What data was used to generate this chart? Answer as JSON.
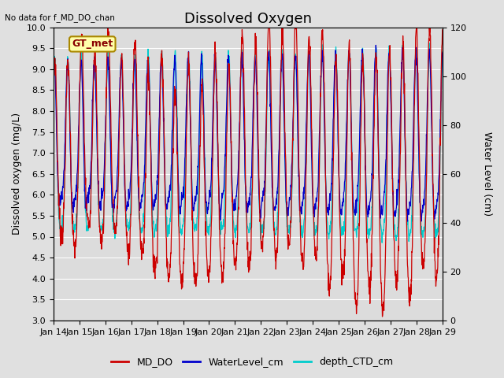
{
  "title": "Dissolved Oxygen",
  "top_left_text": "No data for f_MD_DO_chan",
  "legend_text": "GT_met",
  "ylabel_left": "Dissolved oxygen (mg/L)",
  "ylabel_right": "Water Level (cm)",
  "ylim_left": [
    3.0,
    10.0
  ],
  "ylim_right": [
    0,
    120
  ],
  "yticks_left": [
    3.0,
    3.5,
    4.0,
    4.5,
    5.0,
    5.5,
    6.0,
    6.5,
    7.0,
    7.5,
    8.0,
    8.5,
    9.0,
    9.5,
    10.0
  ],
  "yticks_right": [
    0,
    20,
    40,
    60,
    80,
    100,
    120
  ],
  "xtick_labels": [
    "Jan 14",
    "Jan 15",
    "Jan 16",
    "Jan 17",
    "Jan 18",
    "Jan 19",
    "Jan 20",
    "Jan 21",
    "Jan 22",
    "Jan 23",
    "Jan 24",
    "Jan 25",
    "Jan 26",
    "Jan 27",
    "Jan 28",
    "Jan 29"
  ],
  "color_MD_DO": "#cc0000",
  "color_WaterLevel": "#0000cc",
  "color_depth_CTD": "#00cccc",
  "fig_facecolor": "#e0e0e0",
  "plot_facecolor": "#dcdcdc",
  "grid_color": "#ffffff",
  "title_fontsize": 13,
  "label_fontsize": 9,
  "tick_fontsize": 8,
  "legend_fontsize": 9,
  "gt_met_facecolor": "#ffffaa",
  "gt_met_edgecolor": "#aa8800",
  "gt_met_textcolor": "#880000"
}
